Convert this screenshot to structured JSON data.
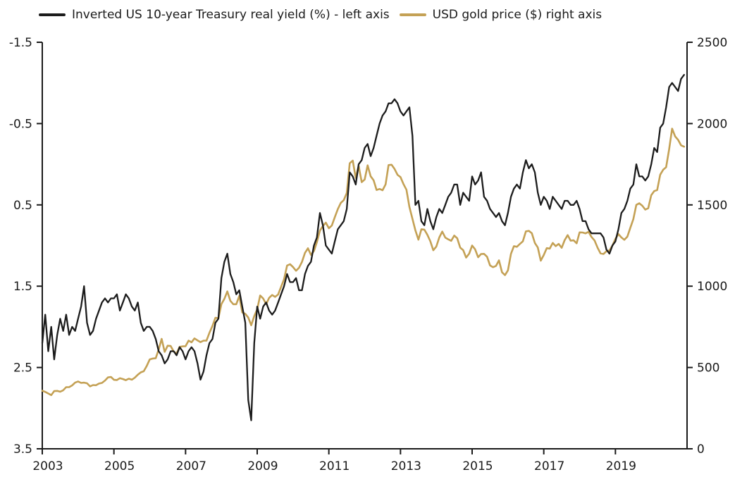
{
  "chart_data": {
    "type": "line",
    "title": "",
    "background": "#ffffff",
    "axis_color": "#1a1a1a",
    "text_color": "#1a1a1a",
    "grid": false,
    "legend_position": "top",
    "x_range": [
      2003,
      2021
    ],
    "x_axis": {
      "tick_values": [
        2003,
        2005,
        2007,
        2009,
        2011,
        2013,
        2015,
        2017,
        2019
      ]
    },
    "left_axis": {
      "label": "Inverted US 10-year Treasury real yield (%)",
      "inverted": true,
      "range": [
        -1.5,
        3.5
      ],
      "ticks": [
        -1.5,
        -0.5,
        0.5,
        1.5,
        2.5,
        3.5
      ]
    },
    "right_axis": {
      "label": "USD gold price ($)",
      "range": [
        0,
        2500
      ],
      "ticks": [
        2500,
        2000,
        1500,
        1000,
        500,
        0
      ]
    },
    "series": [
      {
        "name": "Inverted US 10-year Treasury real yield (%) - left axis",
        "axis": "left",
        "color": "#1c1c1c",
        "x_start": 2003.0,
        "x_step_years": 0.083333,
        "values": [
          2.2,
          1.85,
          2.3,
          2.0,
          2.4,
          2.1,
          1.9,
          2.05,
          1.85,
          2.1,
          2.0,
          2.05,
          1.9,
          1.75,
          1.5,
          1.95,
          2.1,
          2.05,
          1.9,
          1.8,
          1.7,
          1.65,
          1.7,
          1.65,
          1.65,
          1.6,
          1.8,
          1.7,
          1.6,
          1.65,
          1.75,
          1.8,
          1.7,
          1.95,
          2.05,
          2.0,
          2.0,
          2.05,
          2.15,
          2.3,
          2.35,
          2.45,
          2.4,
          2.3,
          2.3,
          2.35,
          2.25,
          2.3,
          2.4,
          2.3,
          2.25,
          2.3,
          2.45,
          2.65,
          2.55,
          2.35,
          2.2,
          2.15,
          1.95,
          1.9,
          1.4,
          1.2,
          1.1,
          1.35,
          1.45,
          1.6,
          1.55,
          1.75,
          1.95,
          2.9,
          3.15,
          2.2,
          1.75,
          1.9,
          1.75,
          1.7,
          1.8,
          1.85,
          1.8,
          1.7,
          1.6,
          1.5,
          1.35,
          1.45,
          1.45,
          1.4,
          1.55,
          1.55,
          1.35,
          1.25,
          1.2,
          1.0,
          0.9,
          0.6,
          0.75,
          1.0,
          1.05,
          1.1,
          0.95,
          0.8,
          0.75,
          0.7,
          0.55,
          0.1,
          0.15,
          0.25,
          0.0,
          -0.05,
          -0.2,
          -0.25,
          -0.1,
          -0.2,
          -0.35,
          -0.5,
          -0.6,
          -0.65,
          -0.75,
          -0.75,
          -0.8,
          -0.75,
          -0.65,
          -0.6,
          -0.65,
          -0.7,
          -0.35,
          0.5,
          0.45,
          0.7,
          0.75,
          0.55,
          0.7,
          0.8,
          0.65,
          0.55,
          0.6,
          0.5,
          0.4,
          0.35,
          0.25,
          0.25,
          0.5,
          0.35,
          0.4,
          0.45,
          0.15,
          0.25,
          0.2,
          0.1,
          0.4,
          0.45,
          0.55,
          0.6,
          0.65,
          0.6,
          0.7,
          0.75,
          0.6,
          0.4,
          0.3,
          0.25,
          0.3,
          0.1,
          -0.05,
          0.05,
          0.0,
          0.1,
          0.35,
          0.5,
          0.4,
          0.45,
          0.55,
          0.4,
          0.45,
          0.5,
          0.55,
          0.45,
          0.45,
          0.5,
          0.5,
          0.45,
          0.55,
          0.7,
          0.7,
          0.8,
          0.85,
          0.85,
          0.85,
          0.85,
          0.9,
          1.05,
          1.1,
          1.0,
          0.95,
          0.8,
          0.6,
          0.55,
          0.45,
          0.3,
          0.25,
          0.0,
          0.15,
          0.15,
          0.2,
          0.15,
          0.0,
          -0.2,
          -0.15,
          -0.45,
          -0.5,
          -0.7,
          -0.95,
          -1.0,
          -0.95,
          -0.9,
          -1.05,
          -1.1
        ]
      },
      {
        "name": "USD gold price ($) right axis",
        "axis": "right",
        "color": "#c4a155",
        "x_start": 2003.0,
        "x_step_years": 0.083333,
        "values": [
          357,
          350,
          340,
          330,
          355,
          356,
          351,
          360,
          379,
          379,
          390,
          407,
          414,
          405,
          407,
          403,
          384,
          392,
          391,
          401,
          405,
          420,
          439,
          442,
          424,
          423,
          434,
          429,
          422,
          431,
          425,
          437,
          456,
          470,
          477,
          510,
          550,
          555,
          557,
          611,
          676,
          596,
          634,
          632,
          599,
          586,
          627,
          630,
          631,
          665,
          655,
          679,
          667,
          656,
          665,
          665,
          713,
          755,
          806,
          803,
          890,
          922,
          968,
          910,
          889,
          889,
          940,
          839,
          830,
          807,
          760,
          816,
          858,
          943,
          924,
          890,
          928,
          946,
          934,
          949,
          996,
          1043,
          1127,
          1135,
          1118,
          1095,
          1113,
          1149,
          1205,
          1233,
          1193,
          1216,
          1271,
          1342,
          1370,
          1391,
          1356,
          1373,
          1424,
          1474,
          1512,
          1529,
          1573,
          1756,
          1772,
          1666,
          1739,
          1640,
          1656,
          1743,
          1676,
          1651,
          1592,
          1598,
          1590,
          1626,
          1745,
          1747,
          1721,
          1685,
          1671,
          1628,
          1593,
          1487,
          1414,
          1343,
          1286,
          1350,
          1348,
          1316,
          1276,
          1221,
          1244,
          1300,
          1336,
          1299,
          1288,
          1279,
          1311,
          1295,
          1237,
          1222,
          1176,
          1200,
          1250,
          1227,
          1178,
          1198,
          1199,
          1181,
          1128,
          1117,
          1125,
          1159,
          1086,
          1068,
          1097,
          1199,
          1246,
          1242,
          1260,
          1276,
          1337,
          1340,
          1326,
          1266,
          1238,
          1157,
          1192,
          1234,
          1231,
          1266,
          1246,
          1260,
          1236,
          1283,
          1314,
          1280,
          1282,
          1264,
          1331,
          1330,
          1325,
          1334,
          1303,
          1281,
          1238,
          1202,
          1198,
          1215,
          1220,
          1250,
          1291,
          1320,
          1300,
          1285,
          1305,
          1359,
          1413,
          1500,
          1510,
          1495,
          1471,
          1479,
          1560,
          1585,
          1591,
          1686,
          1716,
          1732,
          1843,
          1969,
          1921,
          1900,
          1866,
          1858
        ]
      }
    ]
  }
}
